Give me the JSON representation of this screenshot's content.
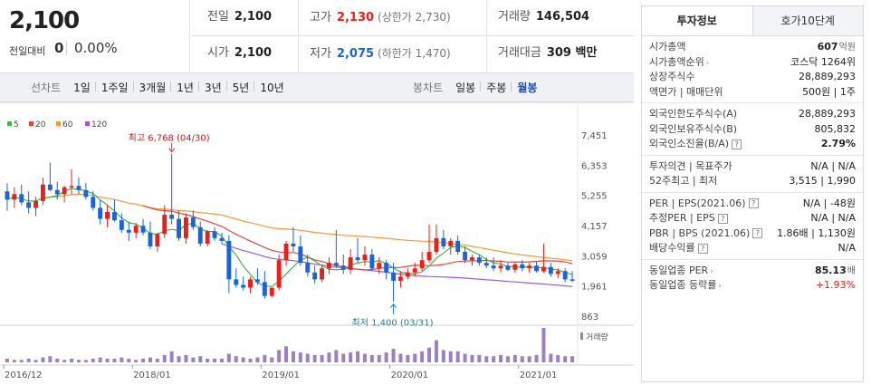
{
  "summary": {
    "price": "2,100",
    "change_label": "전일대비",
    "change_value": "0",
    "change_pct": "0.00%"
  },
  "stats": {
    "prev_close_label": "전일",
    "prev_close": "2,100",
    "high_label": "고가",
    "high": "2,130",
    "high_limit": "(상한가 2,730)",
    "volume_label": "거래량",
    "volume": "146,504",
    "open_label": "시가",
    "open": "2,100",
    "low_label": "저가",
    "low": "2,075",
    "low_limit": "(하한가 1,470)",
    "amount_label": "거래대금",
    "amount": "309 백만"
  },
  "toolbar": {
    "line_label": "선차트",
    "line_periods": [
      "1일",
      "1주일",
      "3개월",
      "1년",
      "3년",
      "5년",
      "10년"
    ],
    "candle_label": "봉차트",
    "candle_periods": [
      "일봉",
      "주봉",
      "월봉"
    ],
    "candle_active": "월봉"
  },
  "colors": {
    "up": "#e8201c",
    "down": "#1a64d6",
    "ma5": "#47b34a",
    "ma20": "#e04545",
    "ma60": "#f09a37",
    "ma120": "#a05ac8",
    "volume": "#9b80c6"
  },
  "chart_data": {
    "type": "candlestick",
    "legend": [
      "5",
      "20",
      "60",
      "120"
    ],
    "y_ticks": [
      "7,451",
      "6,353",
      "5,255",
      "4,157",
      "3,059",
      "1,961",
      "863"
    ],
    "ylim": [
      863,
      7451
    ],
    "x_ticks": [
      "2016/12",
      "2018/01",
      "2019/01",
      "2020/01",
      "2021/01"
    ],
    "max_annotation": "최고 6,768 (04/30)",
    "min_annotation": "최저 1,400 (03/31)",
    "volume_label": "거래량",
    "candles": [
      [
        5400,
        5700,
        4700,
        5100
      ],
      [
        5100,
        5550,
        4800,
        5300
      ],
      [
        5300,
        5650,
        4900,
        5000
      ],
      [
        5000,
        5400,
        4600,
        4800
      ],
      [
        4800,
        5200,
        4500,
        5050
      ],
      [
        5050,
        5900,
        4900,
        5650
      ],
      [
        5650,
        6450,
        5400,
        5450
      ],
      [
        5450,
        5750,
        5100,
        5300
      ],
      [
        5300,
        5600,
        5000,
        5550
      ],
      [
        5550,
        6200,
        5300,
        5600
      ],
      [
        5600,
        5900,
        5300,
        5450
      ],
      [
        5450,
        5700,
        5100,
        5200
      ],
      [
        5200,
        5400,
        4700,
        4800
      ],
      [
        4800,
        5100,
        4200,
        4400
      ],
      [
        4400,
        4900,
        4100,
        4650
      ],
      [
        4650,
        5100,
        4300,
        4350
      ],
      [
        4350,
        4600,
        3900,
        4000
      ],
      [
        4000,
        4300,
        3600,
        3900
      ],
      [
        3900,
        4250,
        3700,
        4150
      ],
      [
        4150,
        4400,
        3800,
        3900
      ],
      [
        3900,
        4300,
        3300,
        3400
      ],
      [
        3400,
        3900,
        3200,
        3850
      ],
      [
        3850,
        4900,
        3700,
        4550
      ],
      [
        4550,
        6768,
        4200,
        4400
      ],
      [
        4400,
        4700,
        3600,
        3700
      ],
      [
        3700,
        4600,
        3500,
        4450
      ],
      [
        4450,
        4700,
        4000,
        4100
      ],
      [
        4100,
        4300,
        3400,
        3500
      ],
      [
        3500,
        4000,
        3400,
        3950
      ],
      [
        3950,
        4100,
        3600,
        3700
      ],
      [
        3700,
        3900,
        3500,
        3600
      ],
      [
        3600,
        3800,
        1700,
        2200
      ],
      [
        2200,
        2600,
        1900,
        2000
      ],
      [
        2000,
        2300,
        1800,
        1900
      ],
      [
        1900,
        2300,
        1700,
        2200
      ],
      [
        2200,
        2600,
        2000,
        2100
      ],
      [
        2100,
        2500,
        1500,
        1600
      ],
      [
        1600,
        1900,
        1550,
        1900
      ],
      [
        1900,
        3100,
        1800,
        2900
      ],
      [
        2900,
        3600,
        2700,
        3500
      ],
      [
        3500,
        4100,
        3200,
        3400
      ],
      [
        3400,
        3800,
        2700,
        2800
      ],
      [
        2800,
        3100,
        2300,
        2450
      ],
      [
        2450,
        2700,
        2050,
        2200
      ],
      [
        2200,
        2700,
        2100,
        2600
      ],
      [
        2600,
        3000,
        2400,
        2800
      ],
      [
        2800,
        4000,
        2600,
        2700
      ],
      [
        2700,
        3100,
        2400,
        2550
      ],
      [
        2550,
        3300,
        2400,
        3000
      ],
      [
        3000,
        3700,
        2800,
        2900
      ],
      [
        2900,
        3400,
        2700,
        3100
      ],
      [
        3100,
        3300,
        2500,
        2600
      ],
      [
        2600,
        3000,
        2400,
        2800
      ],
      [
        2800,
        2900,
        2200,
        2450
      ],
      [
        2450,
        2800,
        1400,
        2150
      ],
      [
        2150,
        2500,
        1900,
        2300
      ],
      [
        2300,
        2600,
        2200,
        2450
      ],
      [
        2450,
        2800,
        2300,
        2600
      ],
      [
        2600,
        3200,
        2500,
        2900
      ],
      [
        2900,
        4200,
        2800,
        3200
      ],
      [
        3200,
        4200,
        3100,
        3700
      ],
      [
        3700,
        4000,
        3300,
        3400
      ],
      [
        3400,
        3700,
        3100,
        3600
      ],
      [
        3600,
        3800,
        3100,
        3200
      ],
      [
        3200,
        3400,
        2800,
        2900
      ],
      [
        2900,
        3100,
        2700,
        3000
      ],
      [
        3000,
        3100,
        2700,
        2800
      ],
      [
        2800,
        3000,
        2600,
        2700
      ],
      [
        2700,
        3000,
        2500,
        2600
      ],
      [
        2600,
        2900,
        2450,
        2700
      ],
      [
        2700,
        2800,
        2500,
        2550
      ],
      [
        2550,
        2800,
        2450,
        2750
      ],
      [
        2750,
        2900,
        2500,
        2600
      ],
      [
        2600,
        2800,
        2450,
        2700
      ],
      [
        2700,
        2850,
        2450,
        2500
      ],
      [
        2500,
        3500,
        2450,
        2650
      ],
      [
        2650,
        2800,
        2300,
        2400
      ],
      [
        2400,
        2600,
        2250,
        2500
      ],
      [
        2500,
        2600,
        2100,
        2200
      ],
      [
        2200,
        2500,
        2100,
        2150
      ]
    ],
    "volumes": [
      3,
      2,
      2,
      3,
      2,
      4,
      5,
      3,
      2,
      3,
      2,
      2,
      3,
      4,
      3,
      3,
      4,
      3,
      2,
      3,
      4,
      3,
      6,
      9,
      5,
      6,
      4,
      5,
      3,
      3,
      3,
      7,
      5,
      4,
      3,
      4,
      6,
      4,
      10,
      13,
      9,
      8,
      7,
      6,
      6,
      8,
      10,
      7,
      8,
      9,
      7,
      6,
      6,
      8,
      11,
      7,
      6,
      7,
      9,
      12,
      18,
      10,
      9,
      9,
      7,
      6,
      6,
      5,
      5,
      6,
      5,
      6,
      5,
      5,
      6,
      28,
      7,
      6,
      5,
      5
    ]
  },
  "side_panel": {
    "tabs": [
      "투자정보",
      "호가10단계"
    ],
    "market_cap_label": "시가총액",
    "market_cap": "607",
    "market_cap_unit": "억원",
    "market_cap_rank_label": "시가총액순위",
    "market_cap_rank": "코스닥 1264위",
    "shares_label": "상장주식수",
    "shares": "28,889,293",
    "face_value_label": "액면가 | 매매단위",
    "face_value": "500원 | 1주",
    "foreign_limit_label": "외국인한도주식수(A)",
    "foreign_limit": "28,889,293",
    "foreign_hold_label": "외국인보유주식수(B)",
    "foreign_hold": "805,832",
    "foreign_ratio_label": "외국인소진율(B/A)",
    "foreign_ratio": "2.79%",
    "opinion_label": "투자의견 | 목표주가",
    "opinion": "N/A | N/A",
    "week52_label": "52주최고 | 최저",
    "week52": "3,515 | 1,990",
    "per_label": "PER | EPS(2021.06)",
    "per": "N/A | -48원",
    "est_per_label": "추정PER | EPS",
    "est_per": "N/A | N/A",
    "pbr_label": "PBR | BPS (2021.06)",
    "pbr": "1.86배 | 1,130원",
    "dividend_label": "배당수익률",
    "dividend": "N/A",
    "sector_per_label": "동일업종 PER",
    "sector_per": "85.13",
    "sector_per_unit": "배",
    "sector_change_label": "동일업종 등락률",
    "sector_change": "+1.93%"
  }
}
